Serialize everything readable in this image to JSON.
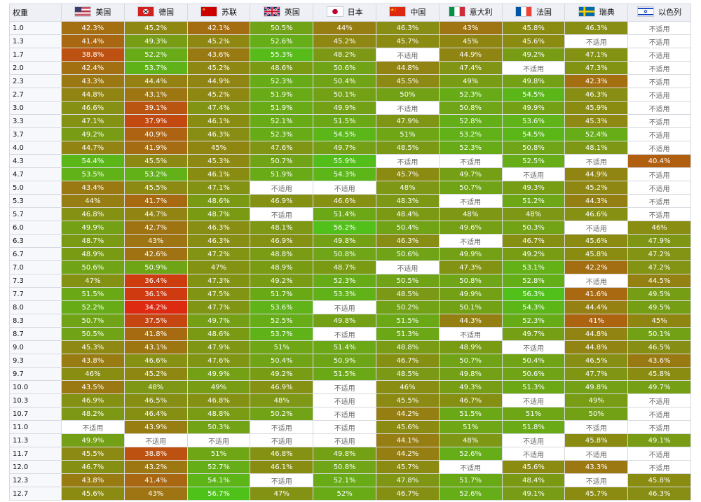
{
  "table": {
    "br_header": "权重",
    "na_text": "不适用",
    "nations": [
      {
        "name": "美国",
        "flag": "usa-flag-icon"
      },
      {
        "name": "德国",
        "flag": "germany-flag-icon"
      },
      {
        "name": "苏联",
        "flag": "ussr-flag-icon"
      },
      {
        "name": "英国",
        "flag": "uk-flag-icon"
      },
      {
        "name": "日本",
        "flag": "japan-flag-icon"
      },
      {
        "name": "中国",
        "flag": "china-flag-icon"
      },
      {
        "name": "意大利",
        "flag": "italy-flag-icon"
      },
      {
        "name": "法国",
        "flag": "france-flag-icon"
      },
      {
        "name": "瑞典",
        "flag": "sweden-flag-icon"
      },
      {
        "name": "以色列",
        "flag": "israel-flag-icon"
      }
    ],
    "color_scale": {
      "low": "#dd2a10",
      "mid": "#8c8a12",
      "high": "#4fc21a",
      "min": 34.2,
      "max": 56.7
    },
    "rows": [
      {
        "br": "1.0",
        "values": [
          "42.3%",
          "45.2%",
          "42.1%",
          "50.5%",
          "44%",
          "46.3%",
          "43%",
          "45.8%",
          "46.3%",
          null
        ]
      },
      {
        "br": "1.3",
        "values": [
          "41.4%",
          "49.3%",
          "45.2%",
          "52.6%",
          "45.2%",
          "45.7%",
          "45%",
          "45.6%",
          null,
          null
        ]
      },
      {
        "br": "1.7",
        "values": [
          "38.8%",
          "52.2%",
          "43.6%",
          "55.3%",
          "48.2%",
          null,
          "44.9%",
          "49.2%",
          "47.1%",
          null
        ]
      },
      {
        "br": "2.0",
        "values": [
          "42.4%",
          "53.7%",
          "45.2%",
          "48.6%",
          "50.6%",
          "44.8%",
          "47.4%",
          null,
          "47.3%",
          null
        ]
      },
      {
        "br": "2.3",
        "values": [
          "43.3%",
          "44.4%",
          "44.9%",
          "52.3%",
          "50.4%",
          "45.5%",
          "49%",
          "49.8%",
          "42.3%",
          null
        ]
      },
      {
        "br": "2.7",
        "values": [
          "44.8%",
          "43.1%",
          "45.2%",
          "51.9%",
          "50.1%",
          "50%",
          "52.3%",
          "54.5%",
          "46.3%",
          null
        ]
      },
      {
        "br": "3.0",
        "values": [
          "46.6%",
          "39.1%",
          "47.4%",
          "51.9%",
          "49.9%",
          null,
          "50.8%",
          "49.9%",
          "45.9%",
          null
        ]
      },
      {
        "br": "3.3",
        "values": [
          "47.1%",
          "37.9%",
          "46.1%",
          "52.1%",
          "51.5%",
          "47.9%",
          "52.8%",
          "53.6%",
          "45.3%",
          null
        ]
      },
      {
        "br": "3.7",
        "values": [
          "49.2%",
          "40.9%",
          "46.3%",
          "52.3%",
          "54.5%",
          "51%",
          "53.2%",
          "54.5%",
          "52.4%",
          null
        ]
      },
      {
        "br": "4.0",
        "values": [
          "44.7%",
          "41.9%",
          "45%",
          "47.6%",
          "49.7%",
          "48.5%",
          "52.3%",
          "50.8%",
          "48.1%",
          null
        ]
      },
      {
        "br": "4.3",
        "values": [
          "54.4%",
          "45.5%",
          "45.3%",
          "50.7%",
          "55.9%",
          null,
          null,
          "52.5%",
          null,
          "40.4%"
        ]
      },
      {
        "br": "4.7",
        "values": [
          "53.5%",
          "53.2%",
          "46.1%",
          "51.9%",
          "54.3%",
          "45.7%",
          "49.7%",
          null,
          "44.9%",
          null
        ]
      },
      {
        "br": "5.0",
        "values": [
          "43.4%",
          "45.5%",
          "47.1%",
          null,
          null,
          "48%",
          "50.7%",
          "49.3%",
          "45.2%",
          null
        ]
      },
      {
        "br": "5.3",
        "values": [
          "44%",
          "41.7%",
          "48.6%",
          "46.9%",
          "46.6%",
          "48.3%",
          null,
          "51.2%",
          "44.3%",
          null
        ]
      },
      {
        "br": "5.7",
        "values": [
          "46.8%",
          "44.7%",
          "48.7%",
          null,
          "51.4%",
          "48.4%",
          "48%",
          "48%",
          "46.6%",
          null
        ]
      },
      {
        "br": "6.0",
        "values": [
          "49.9%",
          "42.7%",
          "46.3%",
          "48.1%",
          "56.2%",
          "50.4%",
          "49.6%",
          "50.3%",
          null,
          "46%"
        ]
      },
      {
        "br": "6.3",
        "values": [
          "48.7%",
          "43%",
          "46.3%",
          "46.9%",
          "49.8%",
          "46.3%",
          null,
          "46.7%",
          "45.6%",
          "47.9%"
        ]
      },
      {
        "br": "6.7",
        "values": [
          "48.9%",
          "42.6%",
          "47.2%",
          "48.8%",
          "50.8%",
          "50.6%",
          "49.9%",
          "49.2%",
          "45.8%",
          "47.2%"
        ]
      },
      {
        "br": "7.0",
        "values": [
          "50.6%",
          "50.9%",
          "47%",
          "48.9%",
          "48.7%",
          null,
          "47.3%",
          "53.1%",
          "42.2%",
          "47.2%"
        ]
      },
      {
        "br": "7.3",
        "values": [
          "47%",
          "36.4%",
          "47.3%",
          "49.2%",
          "52.3%",
          "50.5%",
          "50.8%",
          "52.8%",
          null,
          "44.5%"
        ]
      },
      {
        "br": "7.7",
        "values": [
          "51.5%",
          "36.1%",
          "47.5%",
          "51.7%",
          "53.3%",
          "48.5%",
          "49.9%",
          "56.3%",
          "41.6%",
          "49.5%"
        ]
      },
      {
        "br": "8.0",
        "values": [
          "52.2%",
          "34.2%",
          "47.7%",
          "53.6%",
          null,
          "50.2%",
          "50.1%",
          "54.3%",
          "44.4%",
          "49.5%"
        ]
      },
      {
        "br": "8.3",
        "values": [
          "50.7%",
          "37.5%",
          "49.7%",
          "52.5%",
          "49.8%",
          "51.5%",
          "44.3%",
          "52.3%",
          "41%",
          "45%"
        ]
      },
      {
        "br": "8.7",
        "values": [
          "50.5%",
          "41.8%",
          "48.6%",
          "53.7%",
          null,
          "51.3%",
          null,
          "49.7%",
          "44.8%",
          "50.1%"
        ]
      },
      {
        "br": "9.0",
        "values": [
          "45.3%",
          "43.1%",
          "47.9%",
          "51%",
          "51.4%",
          "48.8%",
          "48.9%",
          null,
          "44.8%",
          "46.5%"
        ]
      },
      {
        "br": "9.3",
        "values": [
          "43.8%",
          "46.6%",
          "47.6%",
          "50.4%",
          "50.9%",
          "46.7%",
          "50.7%",
          "50.4%",
          "46.5%",
          "43.6%"
        ]
      },
      {
        "br": "9.7",
        "values": [
          "46%",
          "45.2%",
          "49.9%",
          "49.2%",
          "51.5%",
          "48.5%",
          "49.8%",
          "50.6%",
          "47.7%",
          "45.8%"
        ]
      },
      {
        "br": "10.0",
        "values": [
          "43.5%",
          "48%",
          "49%",
          "46.9%",
          null,
          "46%",
          "49.3%",
          "51.3%",
          "49.8%",
          "49.7%"
        ]
      },
      {
        "br": "10.3",
        "values": [
          "46.9%",
          "46.5%",
          "46.8%",
          "48%",
          null,
          "45.5%",
          "46.7%",
          null,
          "49%",
          null
        ]
      },
      {
        "br": "10.7",
        "values": [
          "48.2%",
          "46.4%",
          "48.8%",
          "50.2%",
          null,
          "44.2%",
          "51.5%",
          "51%",
          "50%",
          null
        ]
      },
      {
        "br": "11.0",
        "values": [
          null,
          "43.9%",
          "50.3%",
          null,
          null,
          "45.6%",
          "51%",
          "51.8%",
          null,
          null
        ]
      },
      {
        "br": "11.3",
        "values": [
          "49.9%",
          null,
          null,
          null,
          null,
          "44.1%",
          "48%",
          null,
          "45.8%",
          "49.1%"
        ]
      },
      {
        "br": "11.7",
        "values": [
          "45.5%",
          "38.8%",
          "51%",
          "46.8%",
          "49.8%",
          "44.2%",
          "52.6%",
          null,
          null,
          null
        ]
      },
      {
        "br": "12.0",
        "values": [
          "46.7%",
          "43.2%",
          "52.7%",
          "46.1%",
          "50.8%",
          "45.7%",
          null,
          "45.6%",
          "43.3%",
          null
        ]
      },
      {
        "br": "12.3",
        "values": [
          "43.8%",
          "41.4%",
          "54.1%",
          null,
          "52.1%",
          "47.8%",
          "51.7%",
          "48.4%",
          null,
          "45.8%"
        ]
      },
      {
        "br": "12.7",
        "values": [
          "45.6%",
          "43%",
          "56.7%",
          "47%",
          "52%",
          "46.7%",
          "52.6%",
          "49.1%",
          "45.7%",
          "46.3%"
        ]
      }
    ]
  }
}
